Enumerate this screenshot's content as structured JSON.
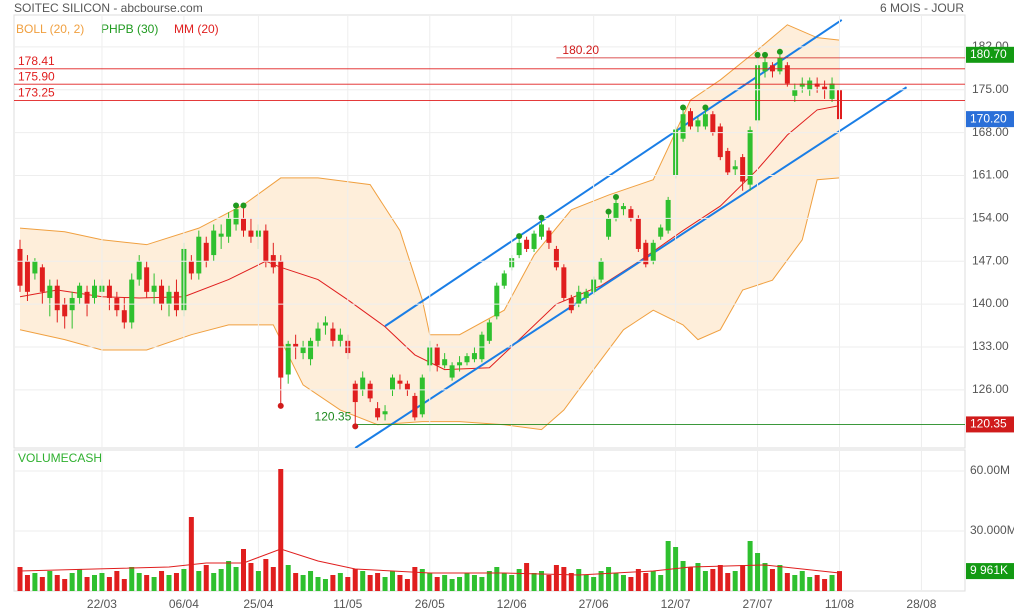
{
  "chart_data": {
    "type": "candlestick",
    "title": "SOITEC SILICON - abcbourse.com",
    "period": "6 MOIS - JOUR",
    "categories": [
      null,
      null,
      null,
      null,
      null,
      null,
      null,
      null,
      null,
      null,
      null,
      "22/03",
      null,
      null,
      null,
      null,
      null,
      null,
      null,
      null,
      null,
      null,
      "06/04",
      null,
      null,
      null,
      null,
      null,
      null,
      null,
      null,
      null,
      "25/04",
      null,
      null,
      null,
      null,
      null,
      null,
      null,
      null,
      null,
      null,
      null,
      "11/05",
      null,
      null,
      null,
      null,
      null,
      null,
      null,
      null,
      null,
      null,
      "26/05",
      null,
      null,
      null,
      null,
      null,
      null,
      null,
      null,
      null,
      null,
      "12/06",
      null,
      null,
      null,
      null,
      null,
      null,
      null,
      null,
      null,
      null,
      "27/06",
      null,
      null,
      null,
      null,
      null,
      null,
      null,
      null,
      null,
      null,
      "12/07",
      null,
      null,
      null,
      null,
      null,
      null,
      null,
      null,
      null,
      null,
      "27/07",
      null,
      null,
      null,
      null,
      null,
      null,
      null,
      null,
      null,
      null,
      "11/08",
      null,
      null,
      null,
      null,
      null,
      null,
      null,
      null,
      null,
      null,
      "28/08",
      null,
      null,
      null
    ],
    "open": [
      149,
      147,
      145,
      146,
      141,
      143,
      140,
      139,
      141,
      142,
      141,
      142,
      143,
      141,
      139,
      137,
      144,
      146,
      142,
      143,
      140,
      142,
      139,
      147,
      145,
      150,
      148,
      151,
      151,
      153,
      154,
      152,
      151,
      152,
      148,
      147,
      128.5,
      133.5,
      132,
      131,
      134,
      136.5,
      136,
      134,
      134,
      127,
      126,
      127,
      123,
      122,
      126,
      127.5,
      127,
      125,
      122,
      130,
      133,
      130,
      128,
      130,
      130.5,
      131,
      131,
      134,
      138,
      143,
      146,
      148,
      150.5,
      149,
      151,
      152,
      149,
      146,
      141,
      140,
      141,
      142,
      144,
      151,
      154,
      155.5,
      155.5,
      154,
      150,
      147,
      151,
      152,
      161,
      167,
      171.5,
      169,
      169,
      171,
      169,
      165,
      162,
      164,
      159.5,
      170,
      178,
      179,
      178,
      179,
      174,
      175.5,
      175,
      176,
      175.5,
      173.5,
      175,
      null,
      null,
      null,
      null,
      null,
      null,
      null,
      null,
      null,
      null,
      null,
      null,
      null,
      null
    ],
    "high": [
      150.5,
      148,
      147.5,
      146.5,
      144,
      144,
      141,
      142,
      143.5,
      143,
      144,
      144,
      144,
      142,
      141,
      145,
      148,
      147,
      145,
      144,
      143,
      144,
      150,
      148,
      152,
      151,
      153,
      153,
      155,
      155.6,
      155.6,
      154,
      153,
      153,
      150,
      148,
      134,
      135,
      134,
      134.5,
      137,
      138,
      137,
      136,
      135,
      127.5,
      129,
      127.5,
      124,
      123.5,
      128.5,
      128.5,
      127.5,
      125.5,
      128.5,
      134,
      133.5,
      132,
      130.5,
      131.5,
      132,
      133,
      135.5,
      137.5,
      143.5,
      145.5,
      148,
      150.6,
      151,
      152,
      153.6,
      152.5,
      149.5,
      146.5,
      141.5,
      143,
      142.5,
      144.5,
      147.5,
      154.6,
      157,
      156.5,
      156,
      154.5,
      150.5,
      150.5,
      153,
      157.5,
      169,
      171.6,
      172,
      170.5,
      171.6,
      171.5,
      169.5,
      165.5,
      163.5,
      164.5,
      169,
      180.2,
      180.2,
      179.5,
      180.7,
      179.5,
      176,
      177,
      177,
      177,
      176.5,
      177,
      175.5,
      null,
      null,
      null,
      null,
      null,
      null,
      null,
      null,
      null,
      null,
      null,
      null,
      null,
      null
    ],
    "low": [
      142,
      140.5,
      144,
      140,
      138,
      137,
      136,
      136,
      140,
      138,
      140,
      141,
      139,
      138,
      136,
      136,
      143,
      141,
      140,
      139,
      138,
      138,
      138,
      144,
      144,
      146,
      147,
      149,
      150,
      152,
      151,
      150,
      149,
      146,
      145,
      123.7,
      127,
      131,
      131,
      130,
      133,
      135,
      133,
      133,
      131,
      120.35,
      125,
      124,
      121,
      121,
      125,
      126,
      125,
      121,
      121.5,
      129,
      129,
      129.5,
      127.5,
      129,
      130,
      130.5,
      130.5,
      133.5,
      137.5,
      142.5,
      145.5,
      147.5,
      148.5,
      148.5,
      150.5,
      149,
      145.5,
      140.5,
      138.5,
      139.5,
      140,
      141.5,
      143.5,
      150.5,
      153.5,
      154.5,
      153.5,
      148.5,
      146,
      146.5,
      150.5,
      151.5,
      160.5,
      166.5,
      168.5,
      168,
      168.5,
      167.5,
      163.5,
      161,
      161,
      158.5,
      158.5,
      169.5,
      177,
      177,
      177.5,
      175.5,
      173,
      174.5,
      174,
      174.5,
      173.5,
      173,
      167.5,
      null,
      null,
      null,
      null,
      null,
      null,
      null,
      null,
      null,
      null,
      null,
      null,
      null,
      null
    ],
    "close": [
      143,
      142,
      147,
      142,
      143,
      139,
      138,
      141,
      143,
      140,
      143,
      143,
      141,
      139,
      137,
      144,
      147,
      142,
      143,
      140,
      142,
      139,
      149,
      145,
      151,
      147,
      152,
      151.5,
      154,
      155.5,
      152,
      151,
      152,
      147,
      146,
      128,
      133.5,
      133,
      133,
      134,
      136,
      137,
      134,
      135,
      132,
      124,
      128,
      124.6,
      121.5,
      122.5,
      128,
      127,
      126,
      121.5,
      128,
      133,
      130,
      131,
      130,
      130.5,
      131.5,
      132,
      135,
      137,
      143,
      145,
      147.5,
      150,
      149,
      151.5,
      153,
      150,
      146,
      141,
      139,
      142,
      142,
      144,
      147,
      154,
      156.5,
      156,
      154,
      149,
      146.5,
      150,
      152.5,
      157,
      168.5,
      171,
      169,
      170,
      171,
      168,
      164,
      161.5,
      162.5,
      160,
      168.4,
      179,
      179.5,
      178,
      180.2,
      176,
      175,
      176,
      176.5,
      175.5,
      175,
      176,
      170.2,
      null,
      null,
      null,
      null,
      null,
      null,
      null,
      null,
      null,
      null,
      null,
      null,
      null,
      null
    ],
    "up_color": "#2fc02f",
    "down_color": "#e01e1e",
    "ylim": [
      116.5,
      187.2
    ],
    "yticks": [
      {
        "value": 182,
        "label": "182.00"
      },
      {
        "value": 175,
        "label": "175.00"
      },
      {
        "value": 168,
        "label": "168.00"
      },
      {
        "value": 161,
        "label": "161.00"
      },
      {
        "value": 154,
        "label": "154.00"
      },
      {
        "value": 147,
        "label": "147.00"
      },
      {
        "value": 140,
        "label": "140.00"
      },
      {
        "value": 133,
        "label": "133.00"
      },
      {
        "value": 126,
        "label": "126.00"
      }
    ],
    "grid": true,
    "high_label": "180.70",
    "last_label": "170.20",
    "low_label": "120.35",
    "levels": [
      {
        "value": 178.41,
        "label": "178.41"
      },
      {
        "value": 175.9,
        "label": "175.90"
      },
      {
        "value": 173.25,
        "label": "173.25"
      }
    ],
    "marked_levels": [
      {
        "value": 180.2,
        "label": "180.20",
        "from": 72,
        "color": "#d01b1b"
      },
      {
        "value": 120.35,
        "label": "120.35",
        "from": 45,
        "color": "#1f8a1f"
      }
    ],
    "boll": {
      "name": "BOLL (20, 2)",
      "color": "#f0a040",
      "upper": {
        "x": [
          0,
          6,
          11,
          17,
          24,
          30,
          35,
          40,
          47,
          51,
          54,
          55,
          59,
          65,
          69,
          74,
          79,
          85,
          90,
          94,
          99,
          103,
          107,
          110
        ],
        "values": [
          152.4,
          151.8,
          150.5,
          149.7,
          152.4,
          156.2,
          160.6,
          160.6,
          159.5,
          152,
          140.7,
          135,
          135,
          139,
          148,
          155.4,
          157.8,
          160.3,
          173.3,
          176.6,
          181.5,
          185.6,
          183.5,
          183.1
        ]
      },
      "lower": {
        "x": [
          0,
          6,
          11,
          17,
          23,
          28,
          34,
          38,
          43,
          48,
          54,
          59,
          65,
          70,
          73,
          77,
          81,
          85,
          89,
          91,
          94,
          97,
          101,
          105,
          107,
          110
        ],
        "values": [
          135.8,
          134.2,
          132.5,
          132.5,
          135,
          136.6,
          136.6,
          126.8,
          122.7,
          120.3,
          120.8,
          120.8,
          120.3,
          119.5,
          122.7,
          129.3,
          135.8,
          139,
          136.6,
          134.2,
          135.8,
          142.3,
          143.9,
          150.5,
          160.3,
          160.6
        ]
      }
    },
    "phpb": {
      "name": "PHPB (30)",
      "color": "#1f9a1f",
      "low_color": "#d01b1b",
      "highs_x": [
        29,
        30,
        67,
        70,
        79,
        80,
        89,
        92,
        99,
        100,
        102
      ],
      "highs": [
        155.6,
        155.6,
        150.6,
        153.6,
        154.6,
        157,
        171.6,
        171.6,
        180.2,
        180.2,
        180.7
      ],
      "lows_x": [
        35,
        45
      ],
      "lows": [
        123.7,
        120.35
      ]
    },
    "mm": {
      "name": "MM (20)",
      "color": "#e01e1e",
      "x": [
        0,
        5,
        11,
        16,
        22,
        28,
        33,
        35,
        40,
        44,
        49,
        53,
        57,
        63,
        67,
        72,
        78,
        83,
        89,
        94,
        99,
        103,
        107,
        110
      ],
      "values": [
        141.2,
        142.3,
        141.2,
        141,
        141.2,
        144,
        147,
        146,
        144,
        140.7,
        136.3,
        131.7,
        129.3,
        129.6,
        134.2,
        140,
        143,
        146.9,
        152,
        156,
        162,
        167.6,
        171.7,
        172.4
      ]
    },
    "channel": {
      "color": "#1a7ee6",
      "lines": [
        {
          "x": [
            49,
            110.3
          ],
          "y": [
            136.4,
            186.4
          ]
        },
        {
          "x": [
            45,
            119
          ],
          "y": [
            116.5,
            175.4
          ]
        }
      ]
    },
    "volume": {
      "title": "VOLUMECASH",
      "ylim": [
        0,
        70.5
      ],
      "yticks": [
        {
          "value": 30,
          "label": "30.000M"
        },
        {
          "value": 60,
          "label": "60.00M"
        }
      ],
      "values": [
        12,
        8,
        9,
        7,
        10,
        8,
        6,
        9,
        11,
        7,
        8,
        9,
        7,
        10,
        6,
        12,
        9,
        8,
        7,
        10,
        8,
        9,
        11,
        37,
        10,
        13,
        9,
        11,
        15,
        12,
        21,
        14,
        10,
        16,
        12,
        61,
        13,
        9,
        8,
        10,
        7,
        6,
        8,
        9,
        7,
        11,
        10,
        8,
        9,
        7,
        10,
        8,
        6,
        12,
        11,
        9,
        7,
        8,
        6,
        7,
        9,
        8,
        7,
        10,
        12,
        9,
        8,
        11,
        14,
        9,
        10,
        8,
        13,
        12,
        9,
        11,
        8,
        7,
        10,
        12,
        9,
        8,
        7,
        11,
        9,
        10,
        8,
        25,
        22,
        15,
        12,
        14,
        10,
        11,
        13,
        9,
        10,
        13,
        25,
        19,
        14,
        11,
        13,
        9,
        8,
        10,
        7,
        8,
        6,
        8,
        9.961,
        null,
        null,
        null,
        null,
        null,
        null,
        null,
        null,
        null,
        null,
        null,
        null,
        null,
        null
      ],
      "last_label": "9 961K",
      "ma": {
        "color": "#e01e1e",
        "x": [
          0,
          10,
          20,
          25,
          30,
          35,
          40,
          45,
          55,
          65,
          75,
          85,
          90,
          100,
          105,
          110
        ],
        "values": [
          10,
          11,
          12,
          14,
          14,
          21,
          15,
          11,
          9,
          9,
          8,
          10,
          12,
          13,
          11,
          9
        ]
      }
    }
  }
}
